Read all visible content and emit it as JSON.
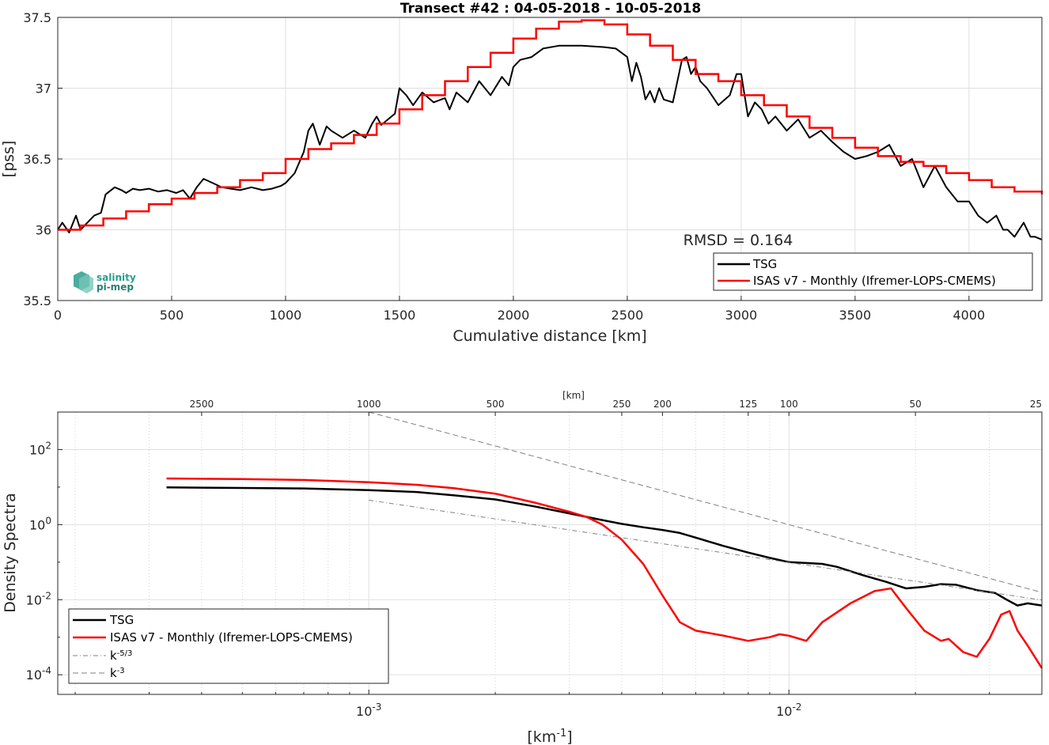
{
  "colors": {
    "tsg": "#000000",
    "isas": "#ff0000",
    "ref": "#808080",
    "logo_teal": "#2a9d8f"
  },
  "logo": {
    "line1": "salinity",
    "line2": "pi-mep"
  },
  "chart_data": [
    {
      "type": "line",
      "title": "Transect #42 : 04-05-2018 - 10-05-2018",
      "xlabel": "Cumulative distance [km]",
      "ylabel": "[pss]",
      "xlim": [
        0,
        4320
      ],
      "ylim": [
        35.5,
        37.5
      ],
      "xticks": [
        0,
        500,
        1000,
        1500,
        2000,
        2500,
        3000,
        3500,
        4000
      ],
      "yticks": [
        35.5,
        36,
        36.5,
        37,
        37.5
      ],
      "grid": true,
      "legend_position": "bottom-right",
      "annotation": "RMSD = 0.164",
      "series": [
        {
          "name": "TSG",
          "style": "line",
          "x": [
            0,
            20,
            50,
            80,
            100,
            130,
            160,
            190,
            210,
            250,
            280,
            300,
            330,
            360,
            400,
            440,
            480,
            520,
            550,
            580,
            610,
            640,
            680,
            720,
            760,
            800,
            850,
            900,
            940,
            980,
            1000,
            1040,
            1080,
            1100,
            1120,
            1150,
            1180,
            1200,
            1250,
            1300,
            1350,
            1380,
            1400,
            1420,
            1450,
            1480,
            1500,
            1530,
            1560,
            1600,
            1650,
            1700,
            1720,
            1750,
            1800,
            1850,
            1900,
            1950,
            1980,
            2000,
            2030,
            2080,
            2130,
            2200,
            2300,
            2400,
            2450,
            2500,
            2520,
            2540,
            2560,
            2580,
            2600,
            2620,
            2640,
            2660,
            2700,
            2720,
            2740,
            2760,
            2780,
            2800,
            2820,
            2850,
            2900,
            2950,
            2980,
            3000,
            3030,
            3060,
            3090,
            3120,
            3150,
            3200,
            3250,
            3300,
            3350,
            3400,
            3450,
            3500,
            3550,
            3600,
            3650,
            3700,
            3750,
            3800,
            3850,
            3900,
            3950,
            4000,
            4040,
            4080,
            4120,
            4150,
            4170,
            4200,
            4240,
            4270,
            4290,
            4320
          ],
          "y": [
            36.0,
            36.05,
            35.98,
            36.1,
            36.0,
            36.05,
            36.1,
            36.12,
            36.25,
            36.3,
            36.28,
            36.26,
            36.29,
            36.28,
            36.29,
            36.27,
            36.28,
            36.26,
            36.28,
            36.22,
            36.3,
            36.36,
            36.33,
            36.3,
            36.29,
            36.28,
            36.3,
            36.28,
            36.29,
            36.31,
            36.33,
            36.4,
            36.55,
            36.7,
            36.75,
            36.6,
            36.73,
            36.7,
            36.65,
            36.7,
            36.65,
            36.75,
            36.8,
            36.74,
            36.78,
            36.82,
            37.0,
            36.95,
            36.88,
            36.97,
            36.9,
            36.93,
            36.85,
            36.97,
            36.9,
            37.05,
            36.95,
            37.08,
            37.02,
            37.15,
            37.2,
            37.22,
            37.28,
            37.3,
            37.3,
            37.29,
            37.28,
            37.22,
            37.05,
            37.18,
            37.08,
            36.92,
            36.98,
            36.9,
            37.0,
            36.92,
            36.9,
            37.05,
            37.2,
            37.22,
            37.1,
            37.15,
            37.05,
            37.0,
            36.88,
            36.95,
            37.1,
            37.1,
            36.8,
            36.9,
            36.85,
            36.75,
            36.8,
            36.7,
            36.78,
            36.65,
            36.7,
            36.62,
            36.55,
            36.5,
            36.52,
            36.55,
            36.6,
            36.45,
            36.5,
            36.3,
            36.45,
            36.3,
            36.2,
            36.2,
            36.1,
            36.05,
            36.1,
            36.0,
            36.0,
            35.95,
            36.05,
            35.95,
            35.95,
            35.93
          ]
        },
        {
          "name": "ISAS v7 - Monthly (Ifremer-LOPS-CMEMS)",
          "style": "step",
          "x": [
            0,
            100,
            200,
            300,
            400,
            500,
            600,
            700,
            800,
            900,
            1000,
            1100,
            1200,
            1300,
            1400,
            1500,
            1600,
            1700,
            1800,
            1900,
            2000,
            2100,
            2200,
            2300,
            2400,
            2500,
            2600,
            2700,
            2800,
            2900,
            3000,
            3100,
            3200,
            3300,
            3400,
            3500,
            3600,
            3700,
            3800,
            3900,
            4000,
            4100,
            4200,
            4320
          ],
          "y": [
            36.0,
            36.03,
            36.08,
            36.13,
            36.18,
            36.22,
            36.26,
            36.3,
            36.35,
            36.4,
            36.5,
            36.57,
            36.61,
            36.67,
            36.75,
            36.85,
            36.95,
            37.05,
            37.15,
            37.25,
            37.35,
            37.42,
            37.47,
            37.48,
            37.45,
            37.38,
            37.3,
            37.2,
            37.1,
            37.05,
            36.95,
            36.88,
            36.8,
            36.72,
            36.65,
            36.58,
            36.52,
            36.48,
            36.45,
            36.4,
            36.35,
            36.3,
            36.27,
            36.25
          ]
        }
      ]
    },
    {
      "type": "line",
      "title": "",
      "xlabel": "[km-1]",
      "ylabel": "Density Spectra",
      "top_axis_label": "[km]",
      "x_scale": "log",
      "y_scale": "log",
      "xlim": [
        0.0001818,
        0.04
      ],
      "ylim": [
        3e-05,
        1000
      ],
      "top_ticks": [
        "2500",
        "1000",
        "500",
        "250",
        "200",
        "125",
        "100",
        "50",
        "25"
      ],
      "grid": true,
      "legend_position": "bottom-left",
      "series": [
        {
          "name": "TSG",
          "style": "solid",
          "x": [
            0.00033,
            0.0005,
            0.0007,
            0.001,
            0.0013,
            0.0016,
            0.002,
            0.0025,
            0.003,
            0.0035,
            0.004,
            0.0045,
            0.005,
            0.0055,
            0.006,
            0.007,
            0.008,
            0.009,
            0.01,
            0.011,
            0.012,
            0.013,
            0.015,
            0.017,
            0.019,
            0.021,
            0.023,
            0.025,
            0.028,
            0.031,
            0.033,
            0.035,
            0.037,
            0.04
          ],
          "y": [
            9.8,
            9.5,
            9.2,
            8.3,
            7.4,
            6.0,
            4.7,
            3.0,
            2.0,
            1.4,
            1.05,
            0.85,
            0.72,
            0.6,
            0.45,
            0.27,
            0.18,
            0.13,
            0.1,
            0.095,
            0.09,
            0.075,
            0.045,
            0.03,
            0.02,
            0.022,
            0.026,
            0.025,
            0.018,
            0.015,
            0.01,
            0.007,
            0.008,
            0.007
          ]
        },
        {
          "name": "ISAS v7 - Monthly (Ifremer-LOPS-CMEMS)",
          "style": "solid",
          "x": [
            0.00033,
            0.0005,
            0.0007,
            0.001,
            0.0013,
            0.0016,
            0.002,
            0.0025,
            0.003,
            0.0033,
            0.0036,
            0.004,
            0.0045,
            0.005,
            0.0055,
            0.006,
            0.007,
            0.008,
            0.009,
            0.0095,
            0.01,
            0.011,
            0.012,
            0.014,
            0.016,
            0.0175,
            0.019,
            0.021,
            0.023,
            0.024,
            0.026,
            0.028,
            0.03,
            0.032,
            0.0335,
            0.035,
            0.037,
            0.04
          ],
          "y": [
            17,
            16.3,
            15.5,
            13.5,
            11.5,
            9.3,
            6.7,
            3.8,
            2.2,
            1.6,
            1.0,
            0.4,
            0.09,
            0.013,
            0.0025,
            0.0015,
            0.0011,
            0.0008,
            0.001,
            0.0012,
            0.0011,
            0.0008,
            0.0025,
            0.008,
            0.017,
            0.02,
            0.006,
            0.0015,
            0.0008,
            0.0009,
            0.0004,
            0.0003,
            0.0009,
            0.004,
            0.005,
            0.0015,
            0.0006,
            0.00015
          ]
        },
        {
          "name": "k^-5/3",
          "style": "dashdot",
          "x": [
            0.001,
            0.04
          ],
          "y": [
            4.5,
            0.0098
          ]
        },
        {
          "name": "k^-3",
          "style": "dashed",
          "x": [
            0.001,
            0.04
          ],
          "y": [
            1000,
            0.0156
          ]
        }
      ]
    }
  ]
}
